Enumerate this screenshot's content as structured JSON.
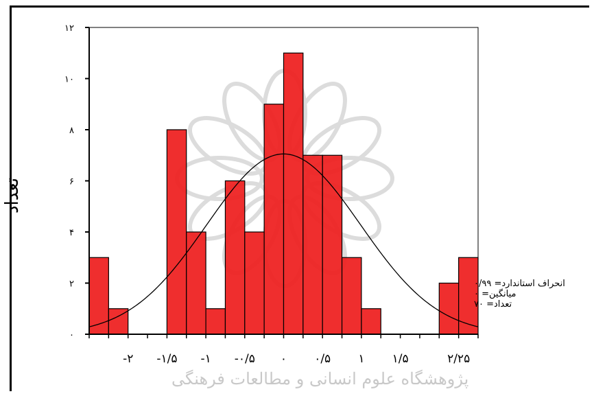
{
  "chart_data": {
    "type": "bar",
    "ylabel": "تعداد",
    "ylim": [
      0,
      12
    ],
    "y_ticks": [
      {
        "value": 0,
        "label": "۰"
      },
      {
        "value": 2,
        "label": "۲"
      },
      {
        "value": 4,
        "label": "۴"
      },
      {
        "value": 6,
        "label": "۶"
      },
      {
        "value": 8,
        "label": "۸"
      },
      {
        "value": 10,
        "label": "۱۰"
      },
      {
        "value": 12,
        "label": "۱۲"
      }
    ],
    "xlim": [
      -2.5,
      2.5
    ],
    "x_ticks": [
      {
        "value": -2,
        "label": "-۲"
      },
      {
        "value": -1.5,
        "label": "-۱/۵"
      },
      {
        "value": -1,
        "label": "-۱"
      },
      {
        "value": -0.5,
        "label": "-۰/۵"
      },
      {
        "value": 0,
        "label": "۰"
      },
      {
        "value": 0.5,
        "label": "۰/۵"
      },
      {
        "value": 1,
        "label": "۱"
      },
      {
        "value": 1.5,
        "label": "۱/۵"
      },
      {
        "value": 2.25,
        "label": "۲/۲۵"
      }
    ],
    "bin_width": 0.25,
    "bins": [
      {
        "x": -2.5,
        "count": 3
      },
      {
        "x": -2.25,
        "count": 1
      },
      {
        "x": -2.0,
        "count": 0
      },
      {
        "x": -1.75,
        "count": 0
      },
      {
        "x": -1.5,
        "count": 8
      },
      {
        "x": -1.25,
        "count": 4
      },
      {
        "x": -1.0,
        "count": 1
      },
      {
        "x": -0.75,
        "count": 6
      },
      {
        "x": -0.5,
        "count": 4
      },
      {
        "x": -0.25,
        "count": 9
      },
      {
        "x": 0.0,
        "count": 11
      },
      {
        "x": 0.25,
        "count": 7
      },
      {
        "x": 0.5,
        "count": 7
      },
      {
        "x": 0.75,
        "count": 3
      },
      {
        "x": 1.0,
        "count": 1
      },
      {
        "x": 1.25,
        "count": 0
      },
      {
        "x": 1.5,
        "count": 0
      },
      {
        "x": 1.75,
        "count": 0
      },
      {
        "x": 2.0,
        "count": 2
      },
      {
        "x": 2.25,
        "count": 3
      }
    ],
    "normal_curve": {
      "mean": 0,
      "std_dev": 0.99,
      "n": 70
    },
    "colors": {
      "bar_fill": "#ee1c1c",
      "bar_stroke": "#000000",
      "curve": "#000000"
    }
  },
  "stats": {
    "std_label": "انحراف استاندارد= ۰/۹۹",
    "mean_label": "میانگین= ۰",
    "n_label": "تعداد= ۷۰"
  },
  "watermark": "پژوهشگاه علوم انسانی و مطالعات فرهنگی"
}
